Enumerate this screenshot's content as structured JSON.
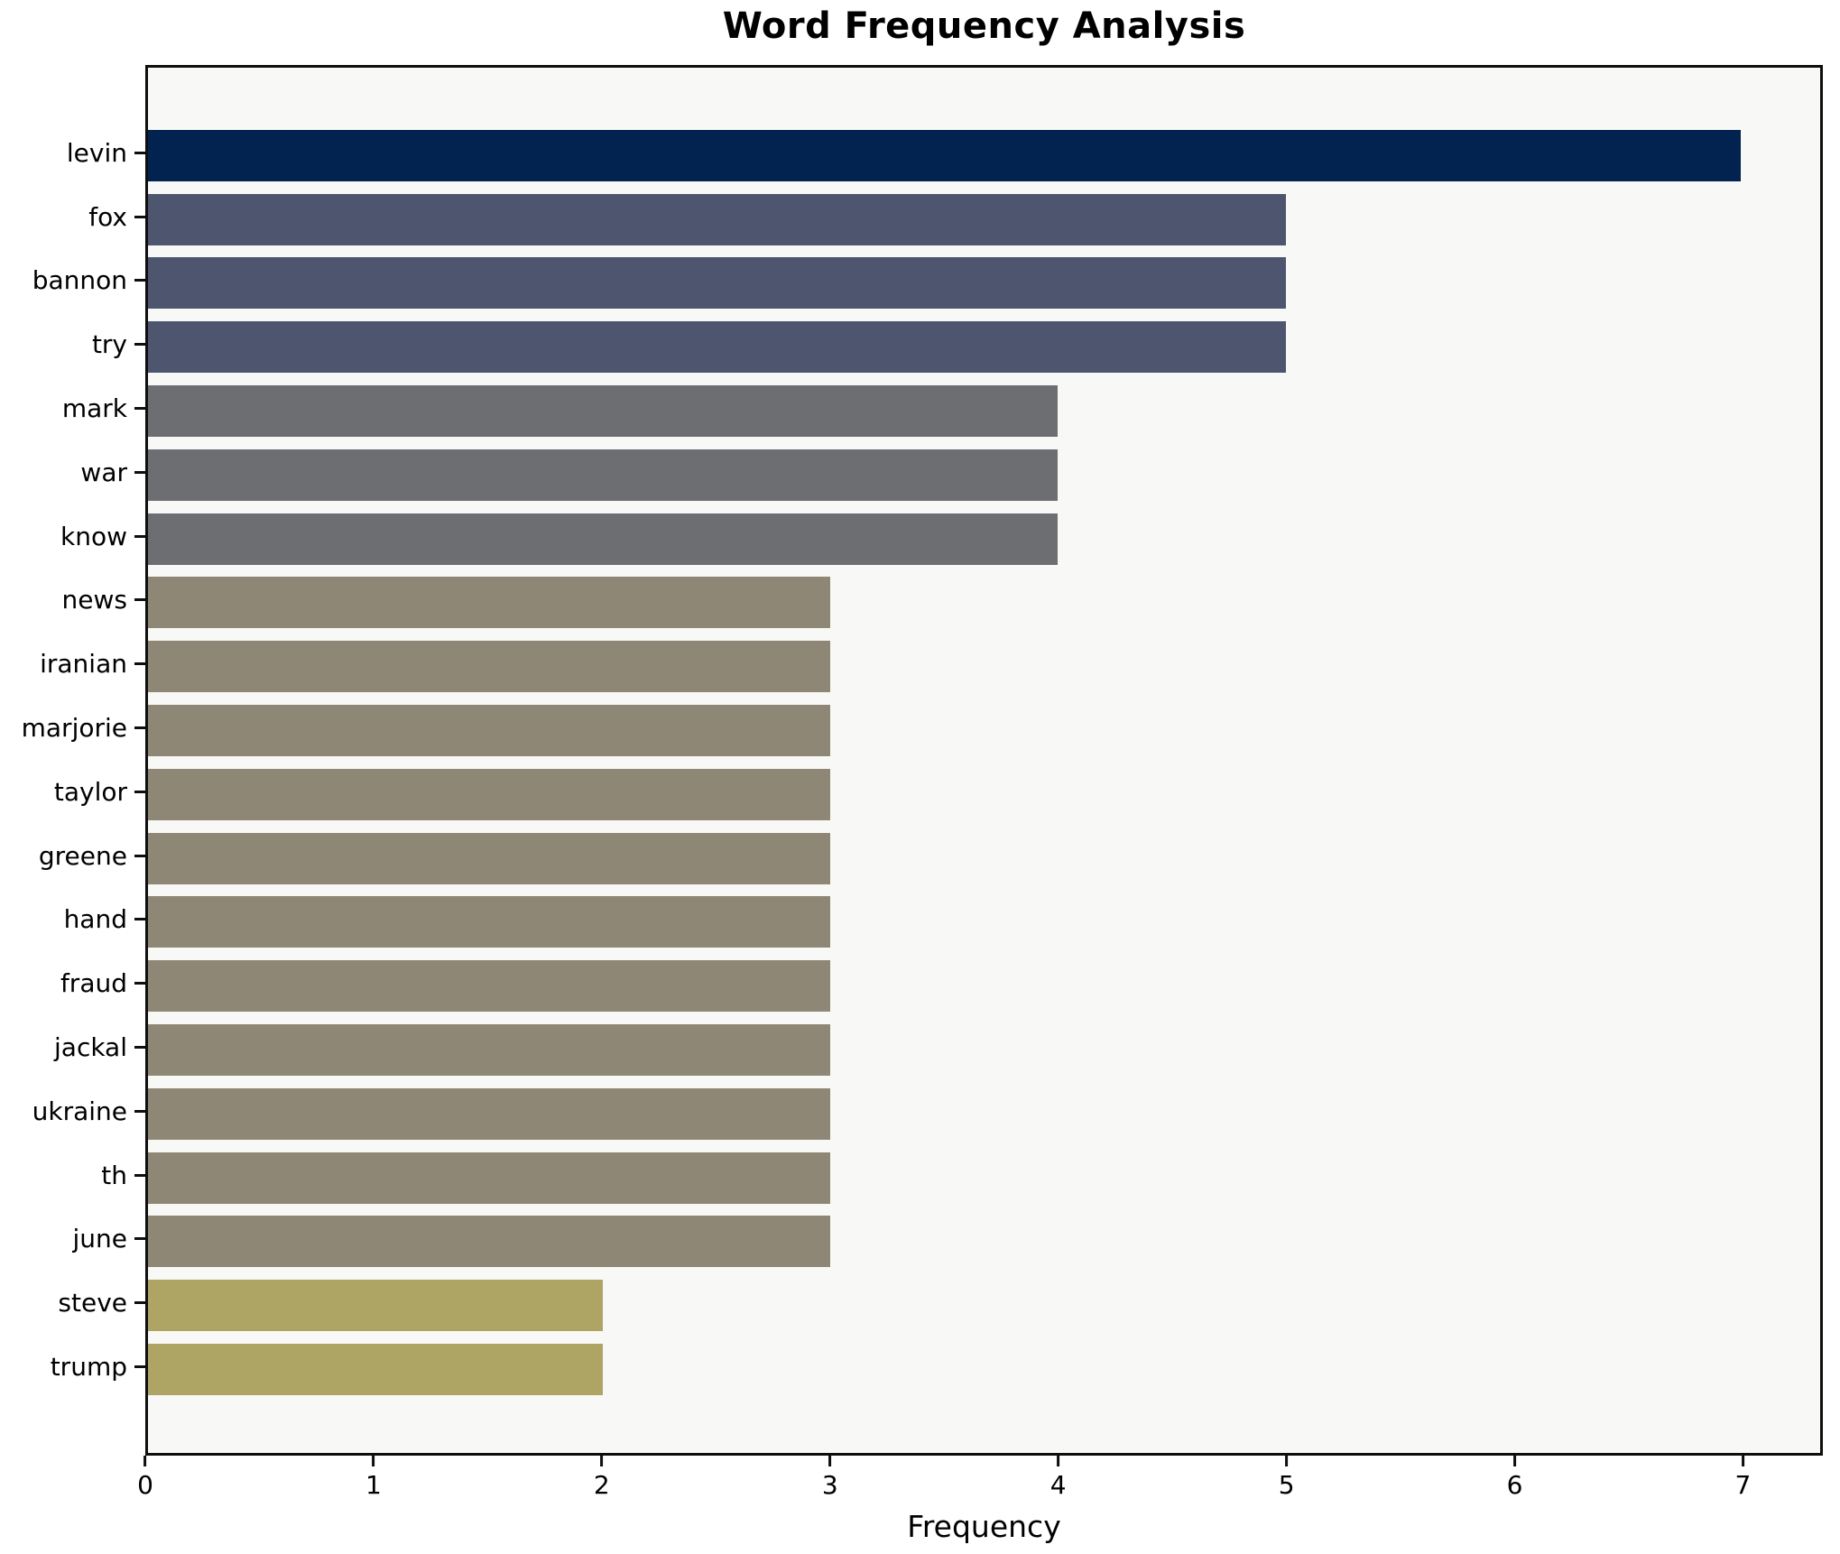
{
  "chart_data": {
    "type": "bar",
    "orientation": "horizontal",
    "title": "Word Frequency Analysis",
    "xlabel": "Frequency",
    "ylabel": "",
    "categories": [
      "levin",
      "fox",
      "bannon",
      "try",
      "mark",
      "war",
      "know",
      "news",
      "iranian",
      "marjorie",
      "taylor",
      "greene",
      "hand",
      "fraud",
      "jackal",
      "ukraine",
      "th",
      "june",
      "steve",
      "trump"
    ],
    "values": [
      7,
      5,
      5,
      5,
      4,
      4,
      4,
      3,
      3,
      3,
      3,
      3,
      3,
      3,
      3,
      3,
      3,
      3,
      2,
      2
    ],
    "xlim": [
      0,
      7.35
    ],
    "xticks": [
      0,
      1,
      2,
      3,
      4,
      5,
      6,
      7
    ],
    "grid": false,
    "legend": null,
    "colors": {
      "value_7": "#022350",
      "value_5": "#4d566e",
      "value_4": "#6d6e71",
      "value_3": "#8e8776",
      "value_2": "#aea565",
      "plot_background": "#f8f8f7",
      "figure_background": "#ffffff",
      "spine": "#0e0e0e",
      "text": "#000000"
    }
  }
}
